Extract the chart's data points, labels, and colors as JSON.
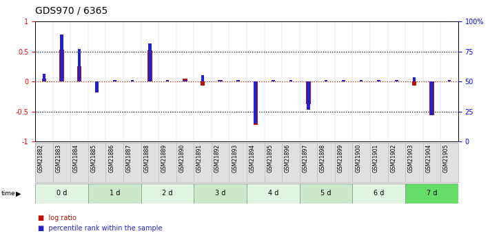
{
  "title": "GDS970 / 6365",
  "samples": [
    "GSM21882",
    "GSM21883",
    "GSM21884",
    "GSM21885",
    "GSM21886",
    "GSM21887",
    "GSM21888",
    "GSM21889",
    "GSM21890",
    "GSM21891",
    "GSM21892",
    "GSM21893",
    "GSM21894",
    "GSM21895",
    "GSM21896",
    "GSM21897",
    "GSM21898",
    "GSM21899",
    "GSM21900",
    "GSM21901",
    "GSM21902",
    "GSM21903",
    "GSM21904",
    "GSM21905"
  ],
  "log_ratio": [
    0.05,
    0.53,
    0.25,
    0.0,
    0.0,
    0.0,
    0.52,
    0.0,
    0.05,
    -0.07,
    0.03,
    0.0,
    -0.72,
    0.0,
    0.0,
    -0.38,
    0.0,
    0.0,
    0.0,
    0.0,
    0.0,
    -0.07,
    -0.56,
    0.0
  ],
  "percentile_rank_norm": [
    0.13,
    0.78,
    0.54,
    -0.18,
    0.03,
    0.03,
    0.63,
    0.03,
    0.03,
    0.1,
    0.03,
    0.03,
    -0.7,
    0.03,
    0.03,
    -0.47,
    0.03,
    0.03,
    0.03,
    0.03,
    0.03,
    0.07,
    -0.56,
    0.03
  ],
  "time_groups": [
    {
      "label": "0 d",
      "start": 0,
      "end": 3
    },
    {
      "label": "1 d",
      "start": 3,
      "end": 6
    },
    {
      "label": "2 d",
      "start": 6,
      "end": 9
    },
    {
      "label": "3 d",
      "start": 9,
      "end": 12
    },
    {
      "label": "4 d",
      "start": 12,
      "end": 15
    },
    {
      "label": "5 d",
      "start": 15,
      "end": 18
    },
    {
      "label": "6 d",
      "start": 18,
      "end": 21
    },
    {
      "label": "7 d",
      "start": 21,
      "end": 24
    }
  ],
  "time_group_colors": [
    "#e2f4e2",
    "#cce8cc",
    "#e2f4e2",
    "#cce8cc",
    "#e2f4e2",
    "#cce8cc",
    "#e2f4e2",
    "#66dd66"
  ],
  "bar_color_red": "#BB1100",
  "bar_color_blue": "#2222CC",
  "ylim": [
    -1.0,
    1.0
  ],
  "title_fontsize": 10,
  "tick_fontsize": 7,
  "sample_fontsize": 5.5
}
